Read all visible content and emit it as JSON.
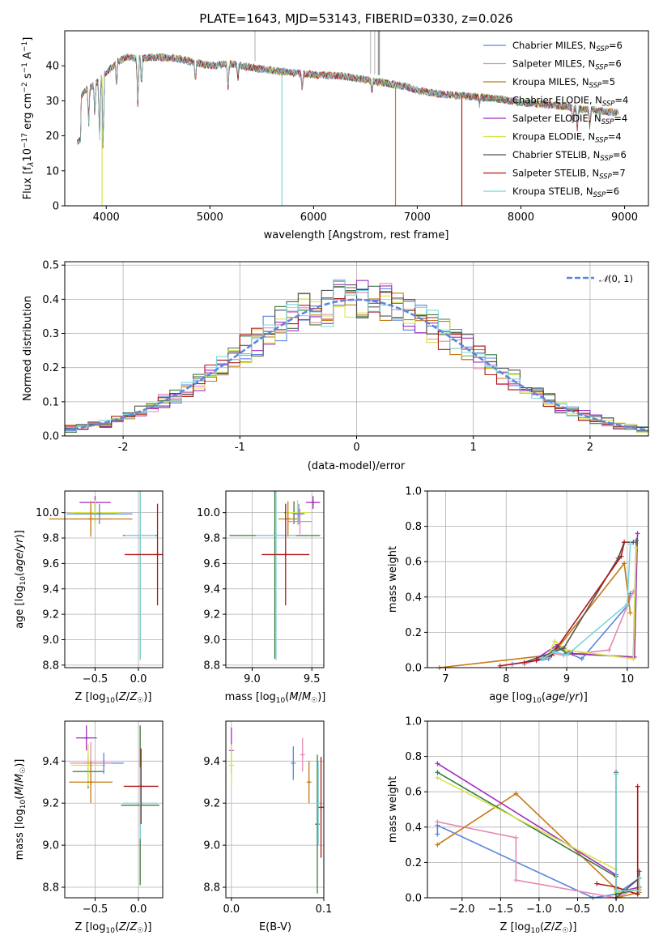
{
  "chart_data": [
    {
      "type": "line",
      "title": "PLATE=1643, MJD=53143, FIBERID=0330, z=0.026",
      "xlabel": "wavelength [Angstrom, rest frame]",
      "ylabel": "Flux [fλ10⁻¹⁷ erg cm⁻² s⁻¹ A⁻¹]",
      "xlim": [
        3600,
        9230
      ],
      "ylim": [
        0,
        50
      ],
      "xticks": [
        4000,
        5000,
        6000,
        7000,
        8000,
        9000
      ],
      "yticks": [
        0,
        10,
        20,
        30,
        40
      ],
      "legend_position": "upper-right",
      "grid": false,
      "series": [
        {
          "name": "Chabrier MILES, N_SSP=6",
          "color": "#5a86de"
        },
        {
          "name": "Salpeter MILES, N_SSP=6",
          "color": "#e58ab6"
        },
        {
          "name": "Kroupa MILES, N_SSP=5",
          "color": "#c47a14"
        },
        {
          "name": "Chabrier ELODIE, N_SSP=4",
          "color": "#3c7a3c"
        },
        {
          "name": "Salpeter ELODIE, N_SSP=4",
          "color": "#a32cc0"
        },
        {
          "name": "Kroupa ELODIE, N_SSP=4",
          "color": "#d6e64a"
        },
        {
          "name": "Chabrier STELIB, N_SSP=6",
          "color": "#555555"
        },
        {
          "name": "Salpeter STELIB, N_SSP=7",
          "color": "#b01818"
        },
        {
          "name": "Kroupa STELIB, N_SSP=6",
          "color": "#7bd6dc"
        }
      ],
      "continuum": {
        "x": [
          3720,
          3800,
          3900,
          4000,
          4100,
          4200,
          4300,
          4500,
          4700,
          5000,
          5200,
          5500,
          5800,
          6000,
          6300,
          6500,
          6700,
          6900,
          7000,
          7200,
          7400,
          7600,
          7800,
          8000,
          8200,
          8400,
          8600,
          8800,
          8950
        ],
        "y": [
          30,
          33,
          35,
          38,
          41,
          42.5,
          42,
          42.5,
          42,
          40,
          40.5,
          39,
          38,
          37.5,
          37,
          36,
          35,
          34,
          33,
          32,
          31.5,
          31,
          30.5,
          29.5,
          29,
          28.5,
          27.5,
          27,
          26.5
        ]
      }
    },
    {
      "type": "area",
      "xlabel": "(data-model)/error",
      "ylabel": "Normed distribution",
      "xlim": [
        -2.5,
        2.5
      ],
      "ylim": [
        0,
        0.51
      ],
      "xticks": [
        -2,
        -1,
        0,
        1,
        2
      ],
      "yticks": [
        0.0,
        0.1,
        0.2,
        0.3,
        0.4,
        0.5
      ],
      "grid": true,
      "legend_position": "upper-right",
      "reference_curve": {
        "name": "N(0,1)",
        "mean": 0,
        "sigma": 1,
        "color": "#5a86de",
        "style": "dashed"
      },
      "bin_width": 0.1
    },
    {
      "type": "scatter",
      "xlabel": "Z [log10(Z/Z☉)]",
      "ylabel": "age [log10(age/yr)]",
      "xlim": [
        -0.85,
        0.28
      ],
      "ylim": [
        8.78,
        10.17
      ],
      "xticks": [
        -0.5,
        0.0
      ],
      "yticks": [
        8.8,
        9.0,
        9.2,
        9.4,
        9.6,
        9.8,
        10.0
      ],
      "grid": true,
      "points": [
        {
          "x": -0.5,
          "y": 10.08,
          "xerr": 0.18,
          "yerr": 0.05,
          "color": "#a32cc0"
        },
        {
          "x": -0.5,
          "y": 10.0,
          "xerr": 0.24,
          "yerr": 0.09,
          "color": "#3c7a3c"
        },
        {
          "x": -0.5,
          "y": 10.0,
          "xerr": 0.28,
          "yerr": 0.1,
          "color": "#d6e64a"
        },
        {
          "x": -0.45,
          "y": 9.99,
          "xerr": 0.38,
          "yerr": 0.08,
          "color": "#5a86de"
        },
        {
          "x": -0.55,
          "y": 9.95,
          "xerr": 0.24,
          "yerr": 0.1,
          "color": "#e58ab6"
        },
        {
          "x": -0.55,
          "y": 9.95,
          "xerr": 0.48,
          "yerr": 0.14,
          "color": "#c47a14"
        },
        {
          "x": 0.02,
          "y": 9.82,
          "xerr": 0.2,
          "yerr": 0.97,
          "color": "#3c7a3c"
        },
        {
          "x": 0.02,
          "y": 9.82,
          "xerr": 0.18,
          "yerr": 0.98,
          "color": "#7bd6dc"
        },
        {
          "x": 0.22,
          "y": 9.67,
          "xerr": 0.38,
          "yerr": 0.4,
          "color": "#b01818"
        }
      ]
    },
    {
      "type": "scatter",
      "xlabel": "mass [log10(M/M☉)]",
      "ylabel": "",
      "xlim": [
        8.78,
        9.6
      ],
      "ylim": [
        8.78,
        10.17
      ],
      "xticks": [
        9.0,
        9.5
      ],
      "yticks": [
        8.8,
        9.0,
        9.2,
        9.4,
        9.6,
        9.8,
        10.0
      ],
      "grid": true,
      "points": [
        {
          "x": 9.51,
          "y": 10.08,
          "xerr": 0.06,
          "yerr": 0.05,
          "color": "#a32cc0"
        },
        {
          "x": 9.35,
          "y": 10.0,
          "xerr": 0.08,
          "yerr": 0.09,
          "color": "#3c7a3c"
        },
        {
          "x": 9.38,
          "y": 10.0,
          "xerr": 0.1,
          "yerr": 0.1,
          "color": "#d6e64a"
        },
        {
          "x": 9.39,
          "y": 9.99,
          "xerr": 0.05,
          "yerr": 0.08,
          "color": "#5a86de"
        },
        {
          "x": 9.4,
          "y": 9.93,
          "xerr": 0.1,
          "yerr": 0.1,
          "color": "#e58ab6"
        },
        {
          "x": 9.3,
          "y": 9.95,
          "xerr": 0.08,
          "yerr": 0.14,
          "color": "#c47a14"
        },
        {
          "x": 9.19,
          "y": 9.82,
          "xerr": 0.38,
          "yerr": 0.97,
          "color": "#3c7a3c"
        },
        {
          "x": 9.2,
          "y": 9.82,
          "xerr": 0.17,
          "yerr": 0.98,
          "color": "#7bd6dc"
        },
        {
          "x": 9.28,
          "y": 9.67,
          "xerr": 0.2,
          "yerr": 0.4,
          "color": "#b01818"
        }
      ]
    },
    {
      "type": "line",
      "xlabel": "age [log10(age/yr)]",
      "ylabel": "mass weight",
      "xlim": [
        6.7,
        10.35
      ],
      "ylim": [
        0,
        1.0
      ],
      "xticks": [
        7,
        8,
        9,
        10
      ],
      "yticks": [
        0.0,
        0.2,
        0.4,
        0.6,
        0.8,
        1.0
      ],
      "grid": true,
      "series": [
        {
          "color": "#5a86de",
          "x": [
            8.1,
            8.7,
            8.85,
            9.25,
            10.0,
            10.05
          ],
          "y": [
            0.02,
            0.05,
            0.11,
            0.05,
            0.35,
            0.42
          ]
        },
        {
          "color": "#e58ab6",
          "x": [
            8.3,
            8.8,
            8.95,
            9.7,
            10.0,
            10.1
          ],
          "y": [
            0.02,
            0.08,
            0.07,
            0.1,
            0.35,
            0.43
          ]
        },
        {
          "color": "#c47a14",
          "x": [
            6.9,
            8.7,
            8.85,
            9.95,
            10.05
          ],
          "y": [
            0.0,
            0.07,
            0.11,
            0.59,
            0.31
          ]
        },
        {
          "color": "#3c7a3c",
          "x": [
            8.6,
            8.85,
            9.0,
            10.1,
            10.15
          ],
          "y": [
            0.05,
            0.12,
            0.08,
            0.06,
            0.72
          ]
        },
        {
          "color": "#a32cc0",
          "x": [
            8.5,
            8.85,
            9.1,
            10.12,
            10.17
          ],
          "y": [
            0.05,
            0.13,
            0.08,
            0.06,
            0.76
          ]
        },
        {
          "color": "#d6e64a",
          "x": [
            8.7,
            8.8,
            9.0,
            10.1,
            10.15
          ],
          "y": [
            0.07,
            0.15,
            0.1,
            0.05,
            0.68
          ]
        },
        {
          "color": "#555555",
          "x": [
            8.3,
            8.8,
            8.95,
            9.85,
            9.95,
            10.1
          ],
          "y": [
            0.03,
            0.09,
            0.11,
            0.62,
            0.71,
            0.71
          ]
        },
        {
          "color": "#b01818",
          "x": [
            7.9,
            8.5,
            8.75,
            9.9,
            9.95
          ],
          "y": [
            0.01,
            0.04,
            0.07,
            0.63,
            0.71
          ]
        },
        {
          "color": "#7bd6dc",
          "x": [
            8.6,
            8.8,
            9.0,
            10.0,
            10.05
          ],
          "y": [
            0.05,
            0.09,
            0.07,
            0.36,
            0.7
          ]
        }
      ]
    },
    {
      "type": "scatter",
      "xlabel": "Z [log10(Z/Z☉)]",
      "ylabel": "mass [log10(M/M☉)]",
      "xlim": [
        -0.85,
        0.28
      ],
      "ylim": [
        8.75,
        9.59
      ],
      "xticks": [
        -0.5,
        0.0
      ],
      "yticks": [
        8.8,
        9.0,
        9.2,
        9.4
      ],
      "grid": true,
      "points": [
        {
          "x": -0.6,
          "y": 9.51,
          "xerr": 0.12,
          "yerr": 0.06,
          "color": "#a32cc0"
        },
        {
          "x": -0.58,
          "y": 9.35,
          "xerr": 0.18,
          "yerr": 0.08,
          "color": "#3c7a3c"
        },
        {
          "x": -0.58,
          "y": 9.38,
          "xerr": 0.2,
          "yerr": 0.1,
          "color": "#d6e64a"
        },
        {
          "x": -0.4,
          "y": 9.39,
          "xerr": 0.23,
          "yerr": 0.05,
          "color": "#5a86de"
        },
        {
          "x": -0.55,
          "y": 9.39,
          "xerr": 0.24,
          "yerr": 0.1,
          "color": "#e58ab6"
        },
        {
          "x": -0.55,
          "y": 9.3,
          "xerr": 0.25,
          "yerr": 0.1,
          "color": "#c47a14"
        },
        {
          "x": 0.02,
          "y": 9.19,
          "xerr": 0.22,
          "yerr": 0.38,
          "color": "#3c7a3c"
        },
        {
          "x": 0.02,
          "y": 9.2,
          "xerr": 0.2,
          "yerr": 0.17,
          "color": "#7bd6dc"
        },
        {
          "x": 0.03,
          "y": 9.28,
          "xerr": 0.2,
          "yerr": 0.18,
          "color": "#b01818"
        }
      ]
    },
    {
      "type": "scatter",
      "xlabel": "E(B-V)",
      "ylabel": "",
      "xlim": [
        -0.006,
        0.1
      ],
      "ylim": [
        8.75,
        9.59
      ],
      "xticks": [
        0.0,
        0.1
      ],
      "yticks": [
        8.8,
        9.0,
        9.2,
        9.4
      ],
      "grid": true,
      "points": [
        {
          "x": 0.0,
          "y": 9.45,
          "yerr": 0.11,
          "color": "#a32cc0"
        },
        {
          "x": 0.0,
          "y": 9.38,
          "yerr": 0.1,
          "color": "#d6e64a"
        },
        {
          "x": 0.067,
          "y": 9.39,
          "yerr": 0.08,
          "color": "#5a86de"
        },
        {
          "x": 0.077,
          "y": 9.43,
          "yerr": 0.08,
          "color": "#e58ab6"
        },
        {
          "x": 0.084,
          "y": 9.3,
          "yerr": 0.1,
          "color": "#c47a14"
        },
        {
          "x": 0.093,
          "y": 9.1,
          "yerr": 0.33,
          "color": "#3c7a3c"
        },
        {
          "x": 0.094,
          "y": 9.2,
          "yerr": 0.2,
          "color": "#7bd6dc"
        },
        {
          "x": 0.097,
          "y": 9.18,
          "yerr": 0.24,
          "color": "#b01818"
        }
      ]
    },
    {
      "type": "line",
      "xlabel": "Z [log10(Z/Z☉)]",
      "ylabel": "mass weight",
      "xlim": [
        -2.45,
        0.42
      ],
      "ylim": [
        0,
        1.0
      ],
      "xticks": [
        -2.0,
        -1.5,
        -1.0,
        -0.5,
        0.0
      ],
      "yticks": [
        0.0,
        0.2,
        0.4,
        0.6,
        0.8,
        1.0
      ],
      "grid": true,
      "series": [
        {
          "color": "#5a86de",
          "x": [
            -2.32,
            -2.32,
            -0.3,
            0.0,
            0.3
          ],
          "y": [
            0.36,
            0.41,
            0.0,
            0.02,
            0.11
          ]
        },
        {
          "color": "#e58ab6",
          "x": [
            -2.32,
            -1.3,
            -1.3,
            0.0,
            0.3
          ],
          "y": [
            0.43,
            0.34,
            0.1,
            0.0,
            0.06
          ]
        },
        {
          "color": "#c47a14",
          "x": [
            -2.32,
            -1.3,
            0.0,
            0.0,
            0.3
          ],
          "y": [
            0.3,
            0.59,
            0.05,
            0.0,
            0.03
          ]
        },
        {
          "color": "#3c7a3c",
          "x": [
            -2.32,
            0.0,
            0.0,
            0.3
          ],
          "y": [
            0.71,
            0.12,
            0.02,
            0.05
          ]
        },
        {
          "color": "#a32cc0",
          "x": [
            -2.32,
            0.0,
            0.0,
            0.3
          ],
          "y": [
            0.76,
            0.13,
            0.03,
            0.06
          ]
        },
        {
          "color": "#d6e64a",
          "x": [
            -2.32,
            0.0,
            0.0,
            0.3
          ],
          "y": [
            0.68,
            0.16,
            0.03,
            0.05
          ]
        },
        {
          "color": "#555555",
          "x": [
            0.0,
            0.0,
            0.3,
            0.3
          ],
          "y": [
            0.71,
            0.0,
            0.11,
            0.15
          ]
        },
        {
          "color": "#b01818",
          "x": [
            -0.25,
            0.0,
            0.28,
            0.28
          ],
          "y": [
            0.08,
            0.06,
            0.02,
            0.63
          ]
        },
        {
          "color": "#7bd6dc",
          "x": [
            0.0,
            0.0,
            0.3,
            0.3
          ],
          "y": [
            0.7,
            0.04,
            0.04,
            0.11
          ]
        }
      ]
    }
  ]
}
